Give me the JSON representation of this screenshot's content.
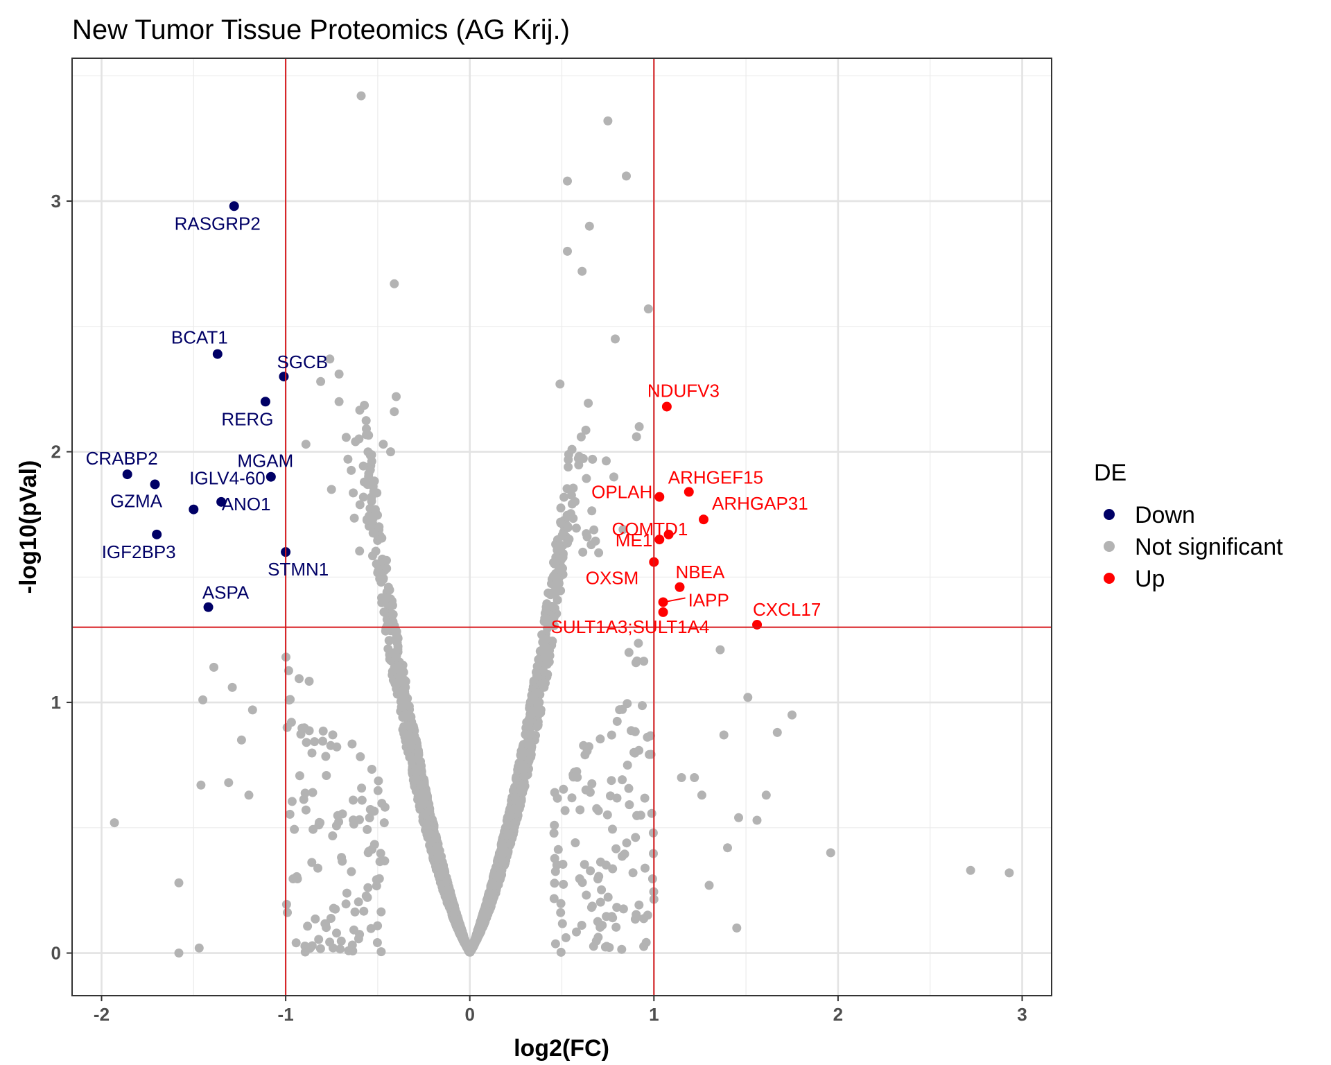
{
  "chart_data": {
    "type": "scatter",
    "title": "New Tumor Tissue Proteomics (AG Krij.)",
    "xlabel": "log2(FC)",
    "ylabel": "-log10(pVal)",
    "xlim": [
      -2.16,
      3.16
    ],
    "ylim": [
      -0.17,
      3.57
    ],
    "x_ticks": [
      "-2",
      "-1",
      "0",
      "1",
      "2",
      "3"
    ],
    "y_ticks": [
      "0",
      "1",
      "2",
      "3"
    ],
    "thresholds": {
      "x": [
        -1,
        1
      ],
      "y": 1.3
    },
    "grid": true,
    "legend": {
      "title": "DE",
      "position": "right",
      "entries": [
        {
          "name": "Down",
          "color": "#000066"
        },
        {
          "name": "Not significant",
          "color": "#b3b3b3"
        },
        {
          "name": "Up",
          "color": "#ff0000"
        }
      ]
    },
    "colors": {
      "down": "#000066",
      "ns": "#b3b3b3",
      "up": "#ff0000",
      "threshold_line": "#d7191c"
    },
    "significant_points": [
      {
        "label": "RASGRP2",
        "x": -1.28,
        "y": 2.98,
        "group": "Down"
      },
      {
        "label": "BCAT1",
        "x": -1.37,
        "y": 2.39,
        "group": "Down"
      },
      {
        "label": "SGCB",
        "x": -1.01,
        "y": 2.3,
        "group": "Down"
      },
      {
        "label": "RERG",
        "x": -1.11,
        "y": 2.2,
        "group": "Down"
      },
      {
        "label": "CRABP2",
        "x": -1.86,
        "y": 1.91,
        "group": "Down"
      },
      {
        "label": "MGAM",
        "x": -1.08,
        "y": 1.9,
        "group": "Down"
      },
      {
        "label": "GZMA",
        "x": -1.71,
        "y": 1.87,
        "group": "Down"
      },
      {
        "label": "ANO1",
        "x": -1.35,
        "y": 1.8,
        "group": "Down"
      },
      {
        "label": "IGLV4-60",
        "x": -1.5,
        "y": 1.77,
        "group": "Down"
      },
      {
        "label": "IGF2BP3",
        "x": -1.7,
        "y": 1.67,
        "group": "Down"
      },
      {
        "label": "STMN1",
        "x": -1.0,
        "y": 1.6,
        "group": "Down"
      },
      {
        "label": "ASPA",
        "x": -1.42,
        "y": 1.38,
        "group": "Down"
      },
      {
        "label": "NDUFV3",
        "x": 1.07,
        "y": 2.18,
        "group": "Up"
      },
      {
        "label": "ARHGEF15",
        "x": 1.19,
        "y": 1.84,
        "group": "Up"
      },
      {
        "label": "OPLAH",
        "x": 1.03,
        "y": 1.82,
        "group": "Up"
      },
      {
        "label": "ARHGAP31",
        "x": 1.27,
        "y": 1.73,
        "group": "Up"
      },
      {
        "label": "COMTD1",
        "x": 1.08,
        "y": 1.67,
        "group": "Up"
      },
      {
        "label": "ME1",
        "x": 1.03,
        "y": 1.65,
        "group": "Up"
      },
      {
        "label": "OXSM",
        "x": 1.0,
        "y": 1.56,
        "group": "Up"
      },
      {
        "label": "NBEA",
        "x": 1.14,
        "y": 1.46,
        "group": "Up"
      },
      {
        "label": "IAPP",
        "x": 1.05,
        "y": 1.4,
        "group": "Up"
      },
      {
        "label": "SULT1A3;SULT1A4",
        "x": 1.05,
        "y": 1.36,
        "group": "Up"
      },
      {
        "label": "CXCL17",
        "x": 1.56,
        "y": 1.31,
        "group": "Up"
      }
    ],
    "notable_ns_points": [
      [
        -0.59,
        3.42
      ],
      [
        0.75,
        3.32
      ],
      [
        0.85,
        3.1
      ],
      [
        0.53,
        3.08
      ],
      [
        0.65,
        2.9
      ],
      [
        0.53,
        2.8
      ],
      [
        0.61,
        2.72
      ],
      [
        -0.41,
        2.67
      ],
      [
        0.97,
        2.57
      ],
      [
        0.79,
        2.45
      ],
      [
        -0.76,
        2.37
      ],
      [
        -0.71,
        2.31
      ],
      [
        -0.81,
        2.28
      ],
      [
        -0.4,
        2.22
      ],
      [
        -0.71,
        2.2
      ],
      [
        -0.41,
        2.16
      ],
      [
        0.49,
        2.27
      ],
      [
        0.92,
        2.1
      ],
      [
        -0.89,
        2.03
      ],
      [
        -0.47,
        2.03
      ],
      [
        -0.43,
        2.0
      ],
      [
        -1.93,
        0.52
      ],
      [
        2.72,
        0.33
      ],
      [
        2.93,
        0.32
      ],
      [
        1.96,
        0.4
      ],
      [
        1.75,
        0.95
      ],
      [
        1.67,
        0.88
      ],
      [
        1.51,
        1.02
      ],
      [
        1.61,
        0.63
      ],
      [
        1.56,
        0.53
      ],
      [
        1.46,
        0.54
      ],
      [
        1.38,
        0.87
      ],
      [
        1.4,
        0.42
      ],
      [
        1.36,
        1.21
      ],
      [
        1.45,
        0.1
      ],
      [
        1.3,
        0.27
      ],
      [
        1.22,
        0.7
      ],
      [
        1.26,
        0.63
      ],
      [
        1.15,
        0.7
      ],
      [
        -1.45,
        1.01
      ],
      [
        -1.39,
        1.14
      ],
      [
        -1.58,
        0.28
      ],
      [
        -1.58,
        0.0
      ],
      [
        -1.47,
        0.02
      ],
      [
        -1.46,
        0.67
      ],
      [
        -1.31,
        0.68
      ],
      [
        -1.29,
        1.06
      ],
      [
        -1.24,
        0.85
      ],
      [
        -1.18,
        0.97
      ],
      [
        -1.2,
        0.63
      ]
    ]
  }
}
